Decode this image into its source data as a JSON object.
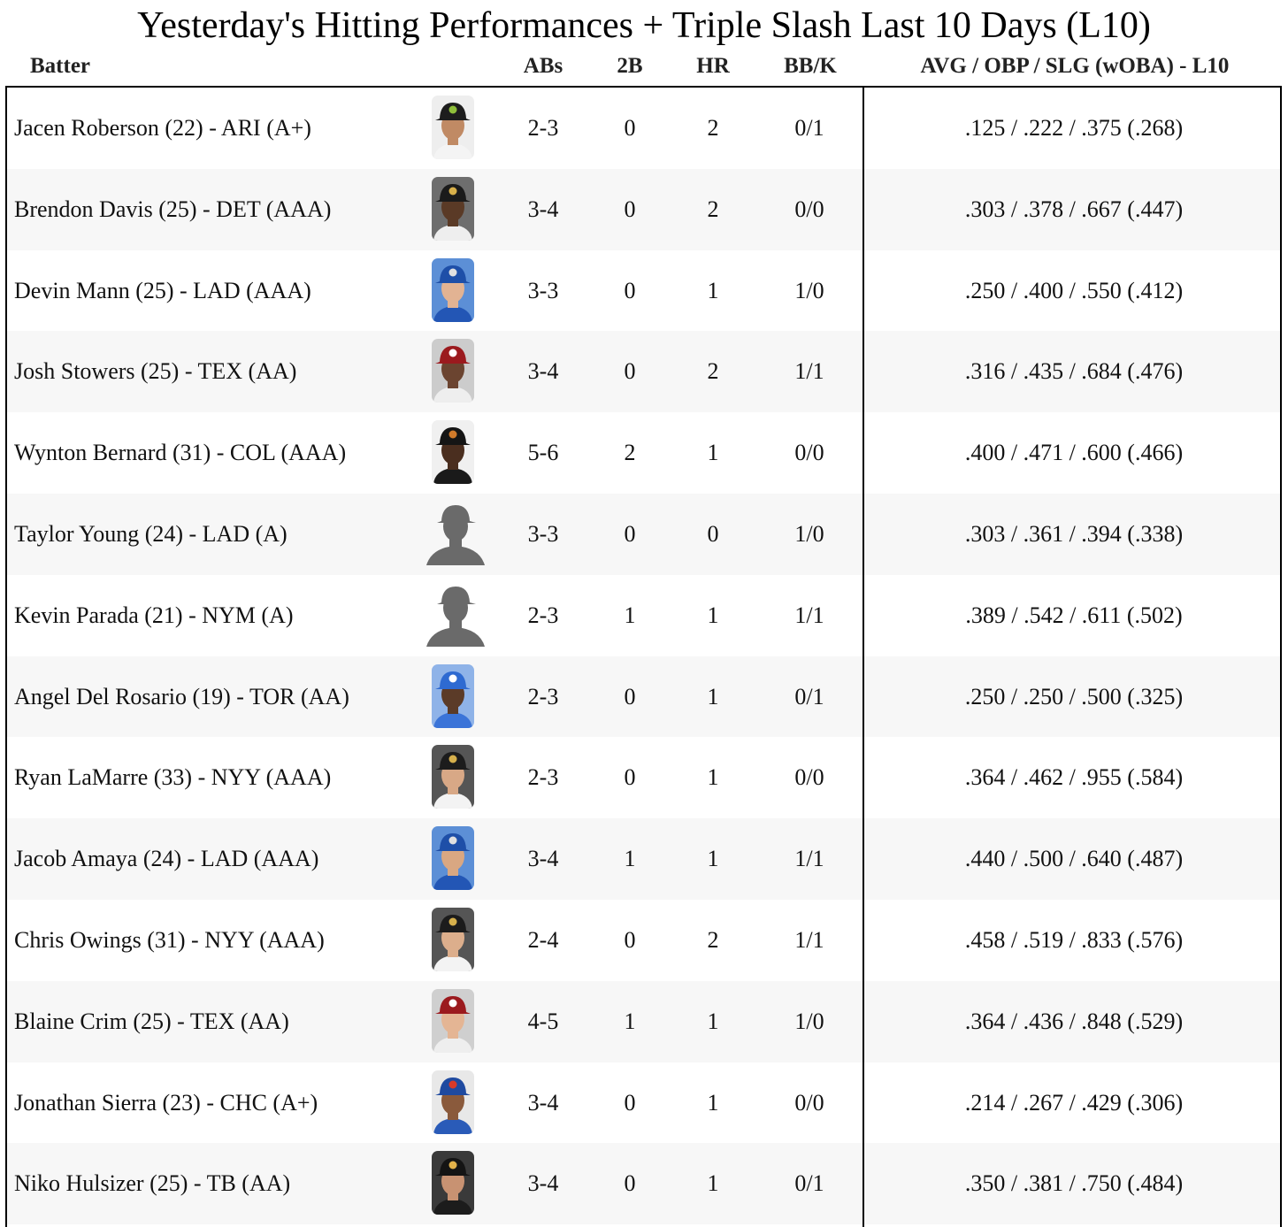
{
  "title": "Yesterday's Hitting Performances + Triple Slash Last 10 Days (L10)",
  "columns": {
    "batter": "Batter",
    "abs": "ABs",
    "doubles": "2B",
    "hr": "HR",
    "bbk": "BB/K",
    "slash": "AVG / OBP / SLG (wOBA) - L10"
  },
  "rows": [
    {
      "batter": "Jacen Roberson (22) - ARI (A+)",
      "abs": "2-3",
      "doubles": "0",
      "hr": "2",
      "bbk": "0/1",
      "slash": ".125 / .222 / .375 (.268)",
      "photo": {
        "type": "headshot",
        "skin": "#c08a64",
        "cap": "#1d1d1d",
        "logo": "#8fbf3a",
        "jersey": "#f4f4f4",
        "bg": "#eeeeee"
      }
    },
    {
      "batter": "Brendon Davis (25) - DET (AAA)",
      "abs": "3-4",
      "doubles": "0",
      "hr": "2",
      "bbk": "0/0",
      "slash": ".303 / .378 / .667 (.447)",
      "photo": {
        "type": "headshot",
        "skin": "#5a3a26",
        "cap": "#1b1b1b",
        "logo": "#d8b04a",
        "jersey": "#eeeeee",
        "bg": "#6e6e6e"
      }
    },
    {
      "batter": "Devin Mann (25) - LAD (AAA)",
      "abs": "3-3",
      "doubles": "0",
      "hr": "1",
      "bbk": "1/0",
      "slash": ".250 / .400 / .550 (.412)",
      "photo": {
        "type": "headshot",
        "skin": "#e2b393",
        "cap": "#1e4fa8",
        "logo": "#e0e0e0",
        "jersey": "#2356b5",
        "bg": "#5c8fd6"
      }
    },
    {
      "batter": "Josh Stowers (25) - TEX (AA)",
      "abs": "3-4",
      "doubles": "0",
      "hr": "2",
      "bbk": "1/1",
      "slash": ".316 / .435 / .684 (.476)",
      "photo": {
        "type": "headshot",
        "skin": "#6b4430",
        "cap": "#9b1a1e",
        "logo": "#ffffff",
        "jersey": "#eeeeee",
        "bg": "#cccccc"
      }
    },
    {
      "batter": "Wynton Bernard (31) - COL (AAA)",
      "abs": "5-6",
      "doubles": "2",
      "hr": "1",
      "bbk": "0/0",
      "slash": ".400 / .471 / .600 (.466)",
      "photo": {
        "type": "headshot",
        "skin": "#4a2e1f",
        "cap": "#151515",
        "logo": "#d07a2a",
        "jersey": "#1a1a1a",
        "bg": "#f0f0f0"
      }
    },
    {
      "batter": "Taylor Young (24) - LAD (A)",
      "abs": "3-3",
      "doubles": "0",
      "hr": "0",
      "bbk": "1/0",
      "slash": ".303 / .361 / .394 (.338)",
      "photo": {
        "type": "silhouette",
        "color": "#6a6a6a"
      }
    },
    {
      "batter": "Kevin Parada (21) - NYM (A)",
      "abs": "2-3",
      "doubles": "1",
      "hr": "1",
      "bbk": "1/1",
      "slash": ".389 / .542 / .611 (.502)",
      "photo": {
        "type": "silhouette",
        "color": "#6a6a6a"
      }
    },
    {
      "batter": "Angel Del Rosario (19) - TOR (AA)",
      "abs": "2-3",
      "doubles": "0",
      "hr": "1",
      "bbk": "0/1",
      "slash": ".250 / .250 / .500 (.325)",
      "photo": {
        "type": "headshot",
        "skin": "#5b3b28",
        "cap": "#2e6ad1",
        "logo": "#ffffff",
        "jersey": "#3b74d8",
        "bg": "#8fb3e8"
      }
    },
    {
      "batter": "Ryan LaMarre (33) - NYY (AAA)",
      "abs": "2-3",
      "doubles": "0",
      "hr": "1",
      "bbk": "0/0",
      "slash": ".364 / .462 / .955 (.584)",
      "photo": {
        "type": "headshot",
        "skin": "#d8a886",
        "cap": "#1c1c1c",
        "logo": "#d6b04c",
        "jersey": "#f3f3f3",
        "bg": "#555555"
      }
    },
    {
      "batter": "Jacob Amaya (24) - LAD (AAA)",
      "abs": "3-4",
      "doubles": "1",
      "hr": "1",
      "bbk": "1/1",
      "slash": ".440 / .500 / .640 (.487)",
      "photo": {
        "type": "headshot",
        "skin": "#d9a782",
        "cap": "#1e4fa8",
        "logo": "#e0e0e0",
        "jersey": "#2356b5",
        "bg": "#5c8fd6"
      }
    },
    {
      "batter": "Chris Owings (31) - NYY (AAA)",
      "abs": "2-4",
      "doubles": "0",
      "hr": "2",
      "bbk": "1/1",
      "slash": ".458 / .519 / .833 (.576)",
      "photo": {
        "type": "headshot",
        "skin": "#dcae8c",
        "cap": "#1c1c1c",
        "logo": "#d6b04c",
        "jersey": "#f3f3f3",
        "bg": "#555555"
      }
    },
    {
      "batter": "Blaine Crim (25) - TEX (AA)",
      "abs": "4-5",
      "doubles": "1",
      "hr": "1",
      "bbk": "1/0",
      "slash": ".364 / .436 / .848 (.529)",
      "photo": {
        "type": "headshot",
        "skin": "#e4b594",
        "cap": "#9b1a1e",
        "logo": "#ffffff",
        "jersey": "#eeeeee",
        "bg": "#cfcfcf"
      }
    },
    {
      "batter": "Jonathan Sierra (23) - CHC (A+)",
      "abs": "3-4",
      "doubles": "0",
      "hr": "1",
      "bbk": "0/0",
      "slash": ".214 / .267 / .429 (.306)",
      "photo": {
        "type": "headshot",
        "skin": "#8a5a3c",
        "cap": "#1f4aa0",
        "logo": "#d83a2a",
        "jersey": "#2a5bb8",
        "bg": "#e8e8e8"
      }
    },
    {
      "batter": "Niko Hulsizer (25) - TB (AA)",
      "abs": "3-4",
      "doubles": "0",
      "hr": "1",
      "bbk": "0/1",
      "slash": ".350 / .381 / .750 (.484)",
      "photo": {
        "type": "headshot",
        "skin": "#c89272",
        "cap": "#141414",
        "logo": "#e2b24a",
        "jersey": "#1c1c1c",
        "bg": "#3a3a3a"
      }
    }
  ]
}
